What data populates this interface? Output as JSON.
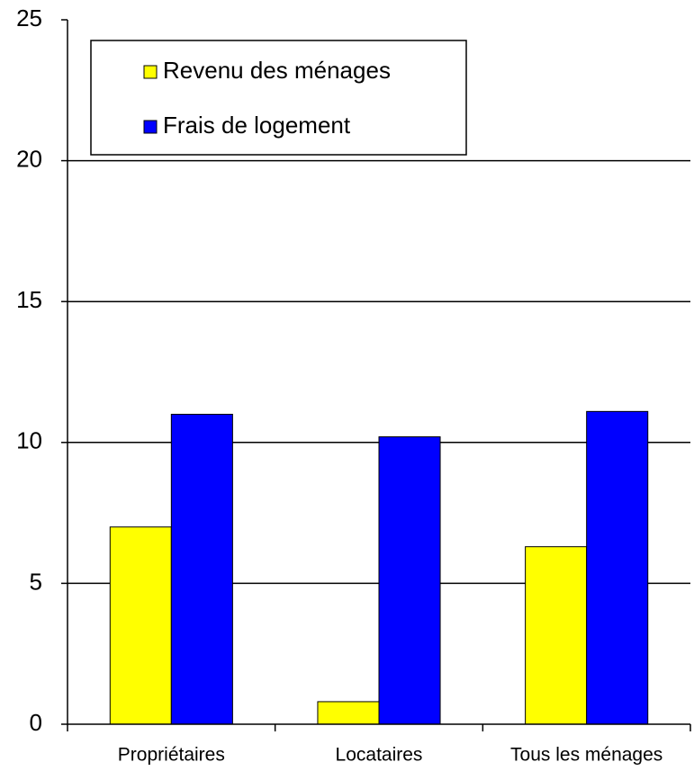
{
  "chart_data": {
    "type": "bar",
    "categories": [
      "Propriétaires",
      "Locataires",
      "Tous les ménages"
    ],
    "series": [
      {
        "name": "Revenu des ménages",
        "color": "#ffff00",
        "values": [
          7.0,
          0.8,
          6.3
        ]
      },
      {
        "name": "Frais de logement",
        "color": "#0000ff",
        "values": [
          11.0,
          10.2,
          11.1
        ]
      }
    ],
    "ylim": [
      0,
      25
    ],
    "yticks": [
      0,
      5,
      10,
      15,
      20,
      25
    ],
    "grid": true,
    "legend": "top-left"
  }
}
